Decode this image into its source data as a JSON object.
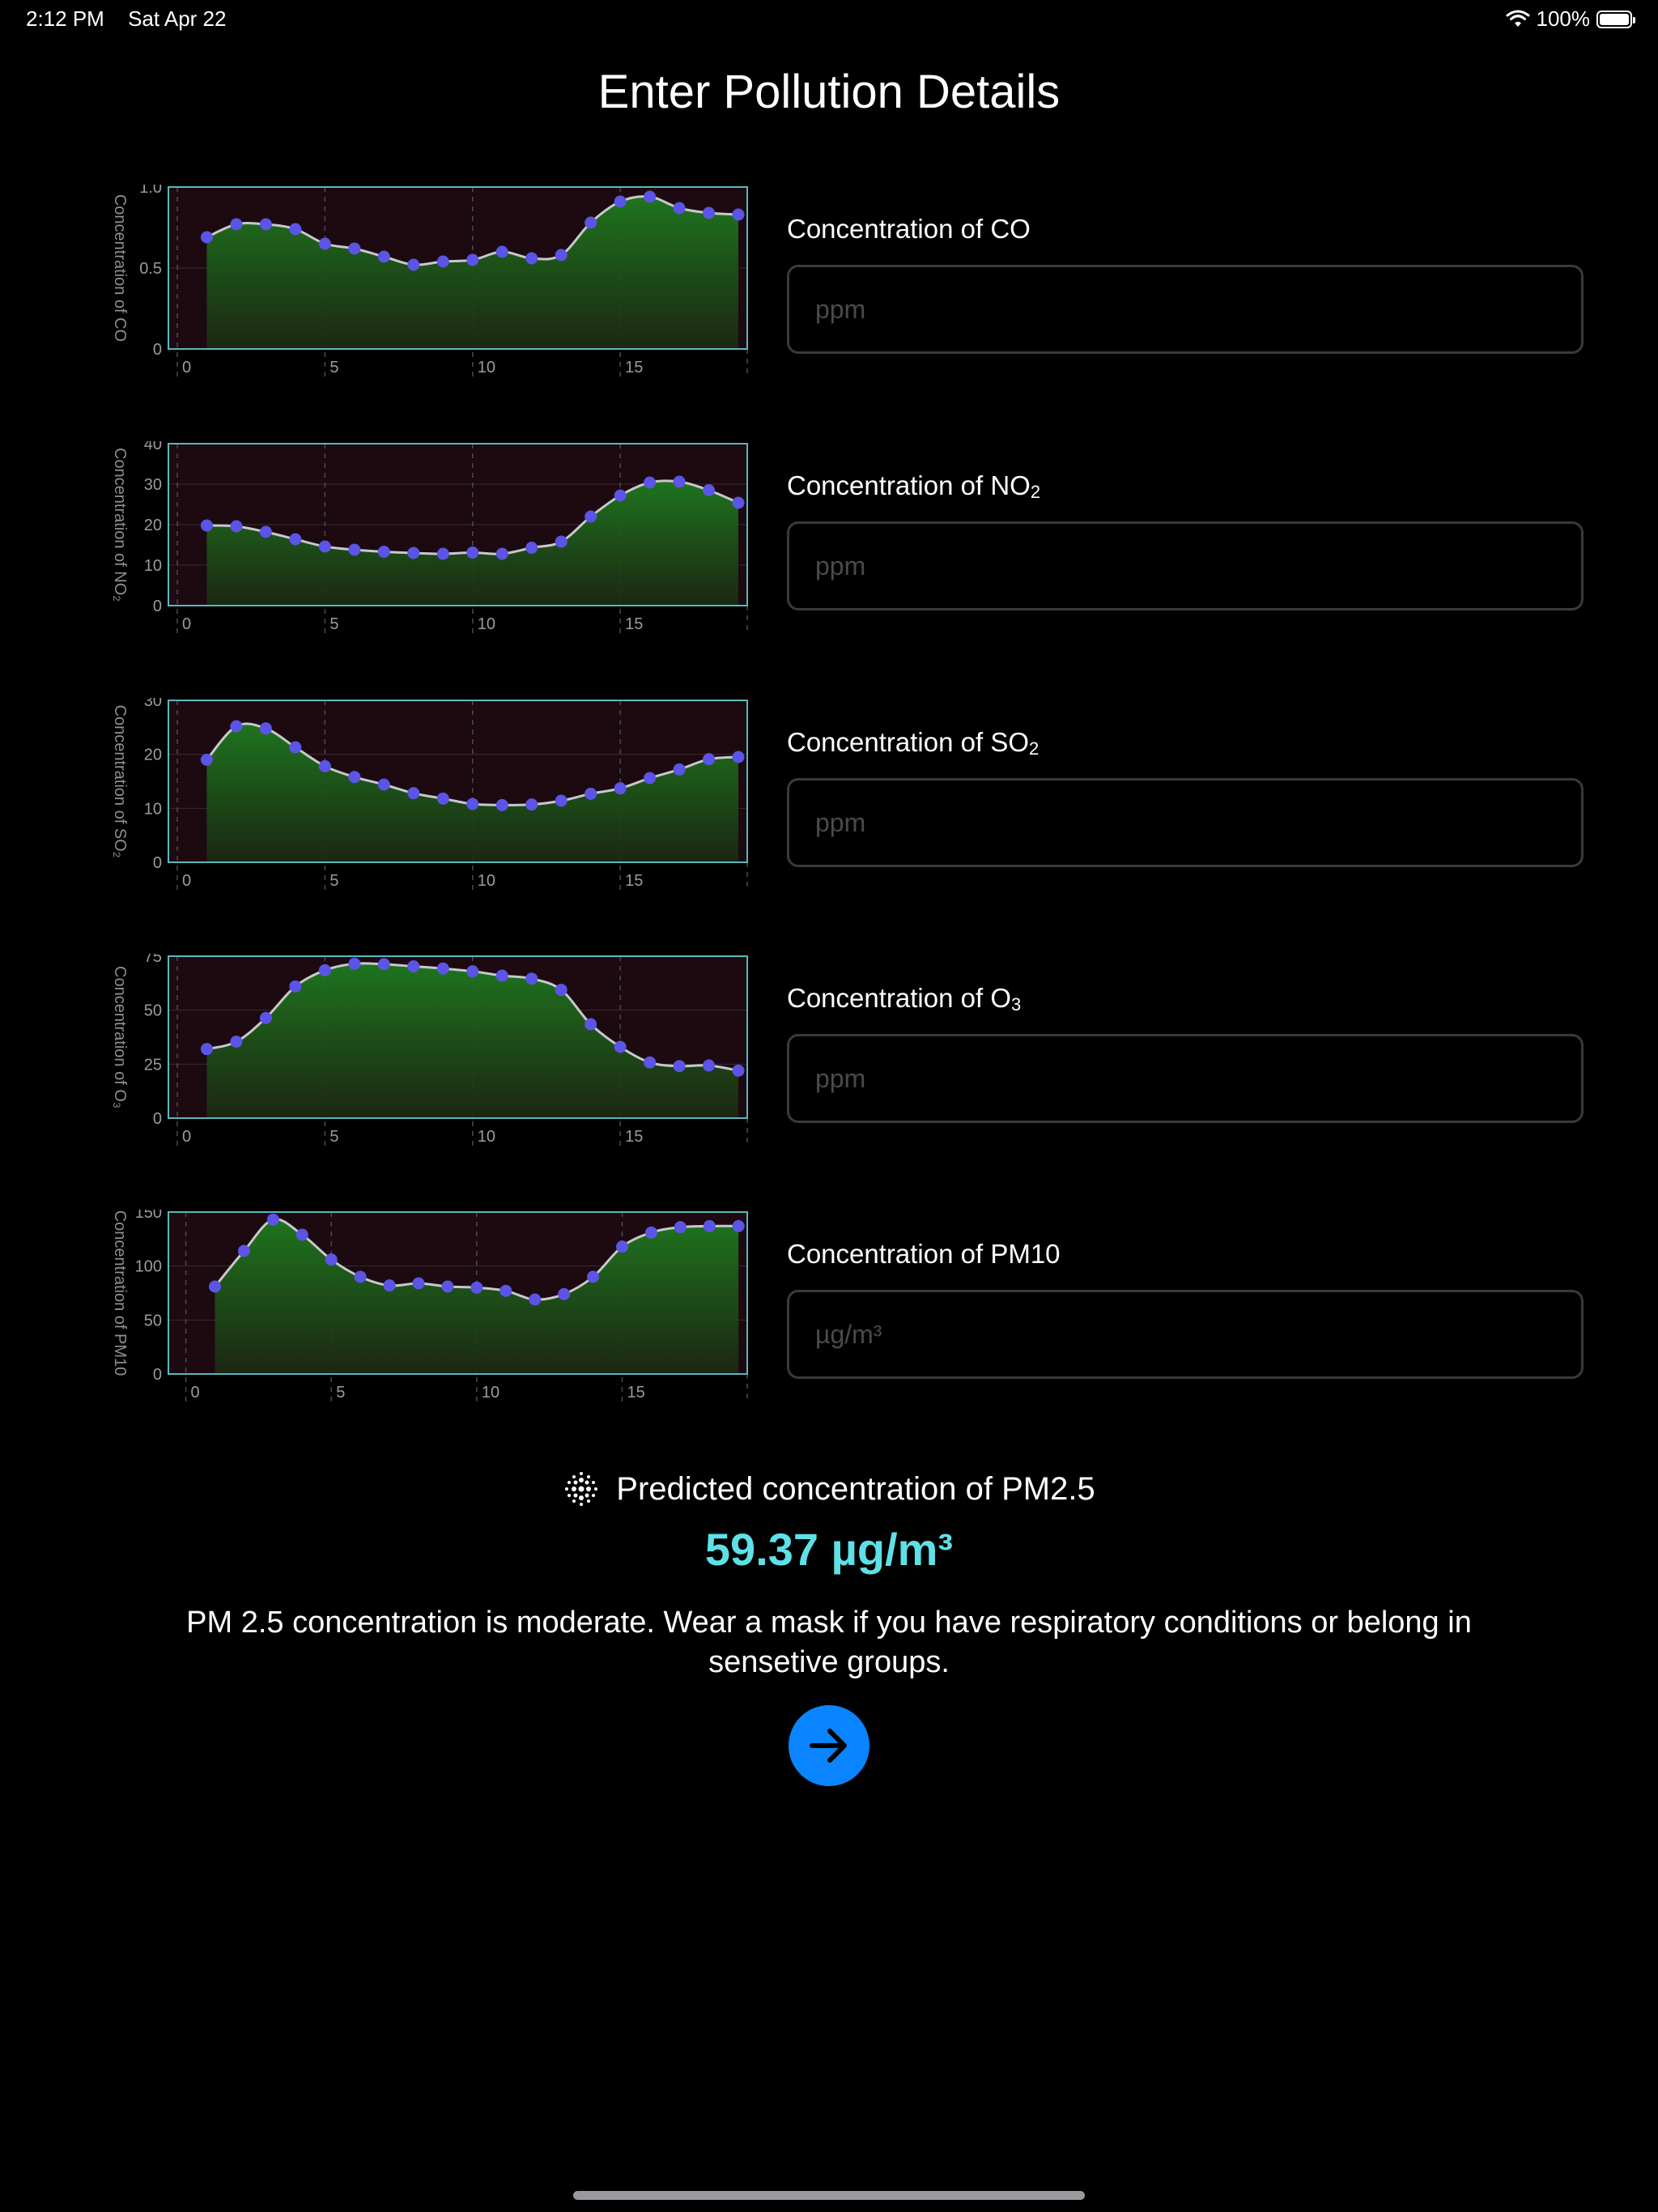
{
  "status_bar": {
    "time": "2:12 PM",
    "date": "Sat Apr 22",
    "battery": "100%"
  },
  "title": "Enter Pollution Details",
  "fields": [
    {
      "label_main": "Concentration of CO",
      "label_sub": "",
      "placeholder": "ppm",
      "value": "",
      "chart": {
        "type": "area",
        "ylabel": "Concentration of CO",
        "y_ticks": [
          "0",
          "0.5",
          "1.0"
        ],
        "ylim": [
          0,
          1.0
        ],
        "x_ticks": [
          "0",
          "5",
          "10",
          "15"
        ],
        "xlim": [
          -0.3,
          19.3
        ],
        "x": [
          1,
          2,
          3,
          4,
          5,
          6,
          7,
          8,
          9,
          10,
          11,
          12,
          13,
          14,
          15,
          16,
          17,
          18,
          19
        ],
        "values": [
          0.69,
          0.77,
          0.77,
          0.74,
          0.65,
          0.62,
          0.57,
          0.52,
          0.54,
          0.55,
          0.6,
          0.56,
          0.58,
          0.78,
          0.91,
          0.94,
          0.87,
          0.84,
          0.83
        ]
      }
    },
    {
      "label_main": "Concentration of NO",
      "label_sub": "2",
      "placeholder": "ppm",
      "value": "",
      "chart": {
        "type": "area",
        "ylabel": "Concentration of NO₂",
        "y_ticks": [
          "0",
          "10",
          "20",
          "30",
          "40"
        ],
        "ylim": [
          0,
          40
        ],
        "x_ticks": [
          "0",
          "5",
          "10",
          "15"
        ],
        "xlim": [
          -0.3,
          19.3
        ],
        "x": [
          1,
          2,
          3,
          4,
          5,
          6,
          7,
          8,
          9,
          10,
          11,
          12,
          13,
          14,
          15,
          16,
          17,
          18,
          19
        ],
        "values": [
          19.8,
          19.6,
          18.2,
          16.4,
          14.6,
          13.8,
          13.3,
          13.0,
          12.8,
          13.1,
          12.8,
          14.3,
          15.8,
          22.0,
          27.2,
          30.4,
          30.6,
          28.5,
          25.4
        ]
      }
    },
    {
      "label_main": "Concentration of SO",
      "label_sub": "2",
      "placeholder": "ppm",
      "value": "",
      "chart": {
        "type": "area",
        "ylabel": "Concentration of SO₂",
        "y_ticks": [
          "0",
          "10",
          "20",
          "30"
        ],
        "ylim": [
          0,
          30
        ],
        "x_ticks": [
          "0",
          "5",
          "10",
          "15"
        ],
        "xlim": [
          -0.3,
          19.3
        ],
        "x": [
          1,
          2,
          3,
          4,
          5,
          6,
          7,
          8,
          9,
          10,
          11,
          12,
          13,
          14,
          15,
          16,
          17,
          18,
          19
        ],
        "values": [
          19.0,
          25.2,
          24.8,
          21.3,
          17.8,
          15.8,
          14.4,
          12.8,
          11.8,
          10.8,
          10.6,
          10.7,
          11.4,
          12.7,
          13.7,
          15.6,
          17.2,
          19.1,
          19.5
        ]
      }
    },
    {
      "label_main": "Concentration of O",
      "label_sub": "3",
      "placeholder": "ppm",
      "value": "",
      "chart": {
        "type": "area",
        "ylabel": "Concentration of O₃",
        "y_ticks": [
          "0",
          "25",
          "50",
          "75"
        ],
        "ylim": [
          0,
          75
        ],
        "x_ticks": [
          "0",
          "5",
          "10",
          "15"
        ],
        "xlim": [
          -0.3,
          19.3
        ],
        "x": [
          1,
          2,
          3,
          4,
          5,
          6,
          7,
          8,
          9,
          10,
          11,
          12,
          13,
          14,
          15,
          16,
          17,
          18,
          19
        ],
        "values": [
          32.0,
          35.4,
          46.4,
          61.0,
          68.5,
          71.5,
          71.3,
          70.3,
          69.3,
          68.0,
          66.0,
          64.6,
          59.4,
          43.5,
          33.0,
          25.8,
          24.1,
          24.4,
          22.0
        ]
      }
    },
    {
      "label_main": "Concentration of PM10",
      "label_sub": "",
      "placeholder": "µg/m³",
      "value": "",
      "chart": {
        "type": "area",
        "ylabel": "Concentration of PM10",
        "y_ticks": [
          "0",
          "50",
          "100",
          "150"
        ],
        "ylim": [
          0,
          150
        ],
        "x_ticks": [
          "0",
          "5",
          "10",
          "15"
        ],
        "xlim": [
          -0.6,
          19.3
        ],
        "x": [
          1,
          2,
          3,
          4,
          5,
          6,
          7,
          8,
          9,
          10,
          11,
          12,
          13,
          14,
          15,
          16,
          17,
          18,
          19
        ],
        "values": [
          81,
          114,
          143,
          129,
          106,
          90,
          82,
          84,
          81,
          80,
          77,
          69,
          74,
          90,
          118,
          131,
          136,
          137,
          137
        ]
      }
    }
  ],
  "prediction": {
    "label": "Predicted concentration of PM2.5",
    "value": "59.37 µg/m³",
    "icon": "sparkle-dots-icon"
  },
  "message": "PM 2.5 concentration is moderate. Wear a mask if you have respiratory conditions or belong in sensetive groups.",
  "next_button": {
    "icon": "arrow-right-icon",
    "color": "#0a84ff"
  },
  "colors": {
    "accent_value": "#5ee0e6",
    "point": "#5b54e6",
    "plot_border": "#5ab8be",
    "plot_bg": "#1c0a10",
    "area_top": "#1f7a1f"
  }
}
